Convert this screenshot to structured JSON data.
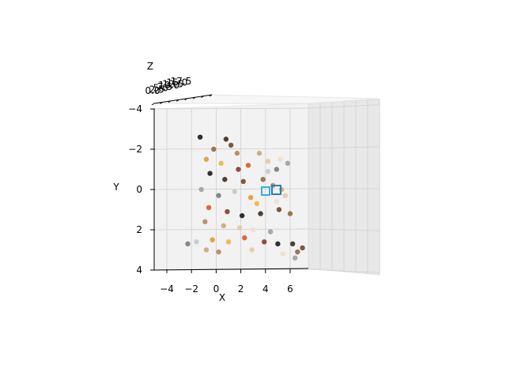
{
  "chart_data": {
    "type": "scatter",
    "subtype": "3d-scatter",
    "title": "",
    "xlabel": "X",
    "ylabel": "Y",
    "zlabel": "Z",
    "x_ticks": [
      "−4",
      "−2",
      "0",
      "2",
      "4",
      "6"
    ],
    "y_ticks": [
      "−4",
      "−2",
      "0",
      "2",
      "4"
    ],
    "z_ticks": [
      "0.0",
      "2.5",
      "5.0",
      "7.5",
      "10.0",
      "12.5",
      "15.0",
      "17.5"
    ],
    "xlim": [
      -5.5,
      7.5
    ],
    "ylim": [
      4,
      -4
    ],
    "zlim": [
      0,
      17.5
    ],
    "grid": true,
    "legend": "none",
    "view": "front, z axis collapsed into depth",
    "point_colors": [
      "#1a1a1a",
      "#3d2b1f",
      "#6b4a2e",
      "#8c6a46",
      "#b08a5e",
      "#c9a77c",
      "#e3c9a8",
      "#f0e0c8",
      "#a0a0a0",
      "#7a7a7a",
      "#c8c8c8",
      "#e09a3a",
      "#f2b24a",
      "#d9572a",
      "#8a3a2a"
    ],
    "marker_colors": {
      "cube_a": "#3ab0d8",
      "cube_b": "#2a7fb0"
    },
    "points": [
      {
        "x": -1.3,
        "y": -2.6
      },
      {
        "x": 0.8,
        "y": -2.5
      },
      {
        "x": 1.2,
        "y": -2.2
      },
      {
        "x": -0.2,
        "y": -2.0
      },
      {
        "x": 1.7,
        "y": -1.8
      },
      {
        "x": 3.5,
        "y": -1.8
      },
      {
        "x": 4.2,
        "y": -1.4
      },
      {
        "x": 5.2,
        "y": -1.5
      },
      {
        "x": 5.8,
        "y": -1.3
      },
      {
        "x": 4.9,
        "y": -1.0
      },
      {
        "x": 4.2,
        "y": -0.9
      },
      {
        "x": -0.8,
        "y": -1.5
      },
      {
        "x": 0.4,
        "y": -1.3
      },
      {
        "x": 2.6,
        "y": -1.2
      },
      {
        "x": 1.8,
        "y": -1.0
      },
      {
        "x": -0.5,
        "y": -0.8
      },
      {
        "x": 0.7,
        "y": -0.5
      },
      {
        "x": 2.2,
        "y": -0.4
      },
      {
        "x": 3.8,
        "y": -0.5
      },
      {
        "x": 4.6,
        "y": -0.2
      },
      {
        "x": 5.3,
        "y": 0.0
      },
      {
        "x": 5.6,
        "y": 0.3
      },
      {
        "x": 4.9,
        "y": 0.6
      },
      {
        "x": -1.2,
        "y": 0.0
      },
      {
        "x": 0.2,
        "y": 0.3
      },
      {
        "x": 1.5,
        "y": 0.1
      },
      {
        "x": 2.8,
        "y": 0.4
      },
      {
        "x": 3.3,
        "y": 0.7
      },
      {
        "x": -0.6,
        "y": 0.9
      },
      {
        "x": 0.9,
        "y": 1.1
      },
      {
        "x": 2.1,
        "y": 1.3
      },
      {
        "x": 3.6,
        "y": 1.2
      },
      {
        "x": 5.1,
        "y": 1.0
      },
      {
        "x": 6.0,
        "y": 1.2
      },
      {
        "x": -0.9,
        "y": 1.6
      },
      {
        "x": 0.6,
        "y": 1.8
      },
      {
        "x": 1.9,
        "y": 1.9
      },
      {
        "x": 3.0,
        "y": 2.0
      },
      {
        "x": 4.4,
        "y": 2.1
      },
      {
        "x": -2.3,
        "y": 2.7
      },
      {
        "x": -1.6,
        "y": 2.6
      },
      {
        "x": -0.3,
        "y": 2.5
      },
      {
        "x": 1.0,
        "y": 2.6
      },
      {
        "x": 2.3,
        "y": 2.4
      },
      {
        "x": 3.9,
        "y": 2.6
      },
      {
        "x": 5.0,
        "y": 2.7
      },
      {
        "x": 6.2,
        "y": 2.7
      },
      {
        "x": 7.0,
        "y": 2.9
      },
      {
        "x": 6.6,
        "y": 3.1
      },
      {
        "x": 0.2,
        "y": 3.1
      },
      {
        "x": -0.8,
        "y": 3.0
      },
      {
        "x": 2.9,
        "y": 3.0
      },
      {
        "x": 5.4,
        "y": 3.2
      },
      {
        "x": 6.4,
        "y": 3.4
      }
    ]
  }
}
